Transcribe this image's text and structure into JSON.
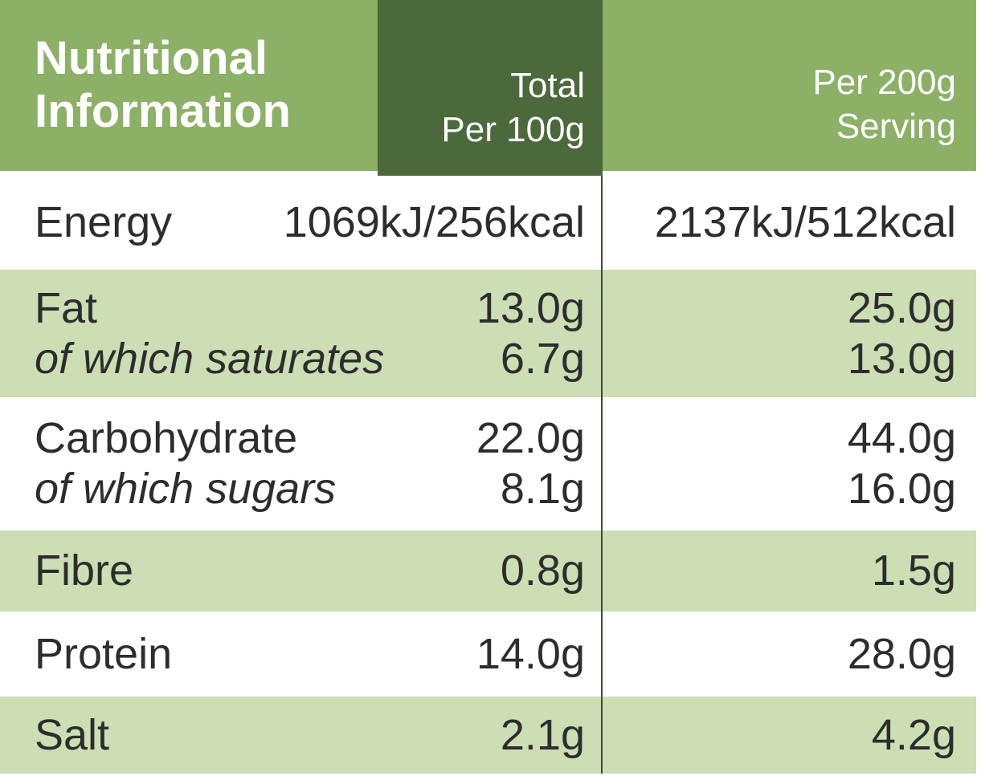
{
  "header": {
    "title_line1": "Nutritional",
    "title_line2": "Information",
    "per100_line1": "Total",
    "per100_line2": "Per 100g",
    "per200_line1": "Per 200g",
    "per200_line2": "Serving"
  },
  "rows": [
    {
      "label": "Energy",
      "sub_label": "",
      "v100": "1069kJ/256kcal",
      "sub_v100": "",
      "v200": "2137kJ/512kcal",
      "sub_v200": ""
    },
    {
      "label": "Fat",
      "sub_label": "of which saturates",
      "v100": "13.0g",
      "sub_v100": "6.7g",
      "v200": "25.0g",
      "sub_v200": "13.0g"
    },
    {
      "label": "Carbohydrate",
      "sub_label": "of which sugars",
      "v100": "22.0g",
      "sub_v100": "8.1g",
      "v200": "44.0g",
      "sub_v200": "16.0g"
    },
    {
      "label": "Fibre",
      "sub_label": "",
      "v100": "0.8g",
      "sub_v100": "",
      "v200": "1.5g",
      "sub_v200": ""
    },
    {
      "label": "Protein",
      "sub_label": "",
      "v100": "14.0g",
      "sub_v100": "",
      "v200": "28.0g",
      "sub_v200": ""
    },
    {
      "label": "Salt",
      "sub_label": "",
      "v100": "2.1g",
      "sub_v100": "",
      "v200": "4.2g",
      "sub_v200": ""
    }
  ],
  "colors": {
    "green_mid": "#8BB066",
    "green_dark": "#4B693B",
    "green_row": "#CBDEB4",
    "text_dark": "#2D2D2D",
    "divider": "#3C4A32",
    "white": "#FFFFFF"
  }
}
